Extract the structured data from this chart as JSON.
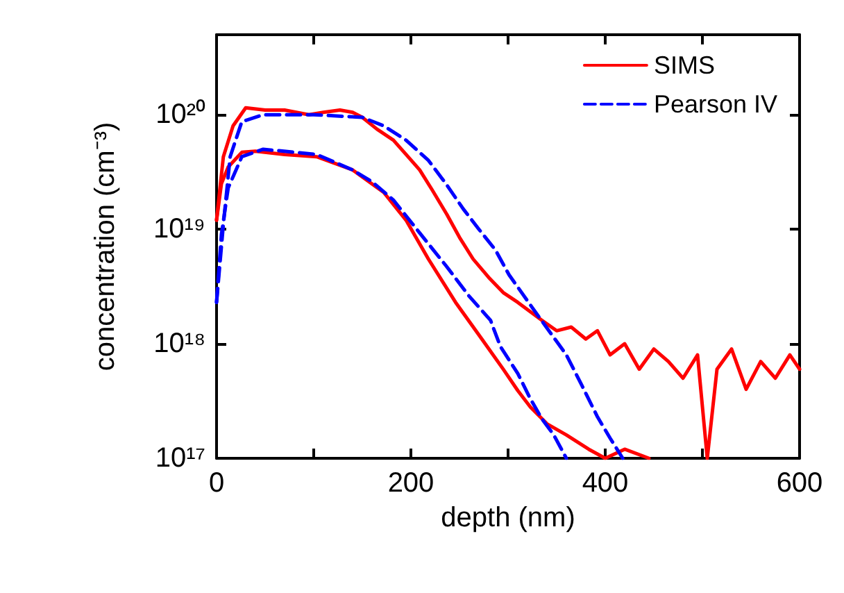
{
  "chart_data": {
    "type": "line",
    "xlabel": "depth (nm)",
    "ylabel": "concentration (cm⁻³)",
    "log": "y",
    "xlim": [
      0,
      600
    ],
    "xticks": [
      0,
      {
        "value": 100,
        "label": null
      },
      200,
      {
        "value": 300,
        "label": null
      },
      400,
      {
        "value": 500,
        "label": null
      },
      600
    ],
    "ylim": [
      1e+17,
      5e+20
    ],
    "yticks": [
      {
        "value": 1e+17,
        "label": "10¹⁷"
      },
      {
        "value": 1e+18,
        "label": "10¹⁸"
      },
      {
        "value": 1e+19,
        "label": "10¹⁹"
      },
      {
        "value": 1e+20,
        "label": "10²⁰"
      }
    ],
    "grid": false,
    "legend": "top right",
    "line_style": "solid",
    "marker": "none",
    "series": [
      {
        "name": "SIMS",
        "color": "#ff0000",
        "x": [
          0,
          7,
          17,
          30,
          50,
          70,
          95,
          110,
          127,
          140,
          150,
          165,
          182,
          195,
          209,
          222,
          237,
          250,
          264,
          280,
          295,
          310,
          323,
          335,
          350,
          365,
          380,
          392,
          405,
          420,
          435,
          450,
          465,
          480,
          495,
          505,
          515,
          530,
          545,
          560,
          575,
          590,
          600
        ],
        "values": [
          1.2e+19,
          4.3e+19,
          8e+19,
          1.15e+20,
          1.1e+20,
          1.1e+20,
          1e+20,
          1.05e+20,
          1.1e+20,
          1.05e+20,
          9.5e+19,
          7.5e+19,
          6e+19,
          4.5e+19,
          3.3e+19,
          2.2e+19,
          1.35e+19,
          8.5e+18,
          5.5e+18,
          3.8e+18,
          2.8e+18,
          2.3e+18,
          1.9e+18,
          1.6e+18,
          1.3e+18,
          1.4e+18,
          1.1e+18,
          1.3e+18,
          8e+17,
          1e+18,
          6e+17,
          9e+17,
          7e+17,
          5e+17,
          8e+17,
          1e+17,
          6e+17,
          9e+17,
          4e+17,
          7e+17,
          5e+17,
          8e+17,
          6e+17
        ]
      },
      {
        "color": "#ff0000",
        "x": [
          0,
          5,
          12,
          26,
          40,
          70,
          103,
          140,
          172,
          195,
          218,
          246,
          273,
          295,
          310,
          323,
          340,
          360,
          383,
          400,
          420,
          445
        ],
        "values": [
          1.2e+19,
          2.5e+19,
          3.5e+19,
          4.7e+19,
          4.8e+19,
          4.5e+19,
          4.3e+19,
          3.3e+19,
          2.1e+19,
          1.2e+19,
          5.5e+18,
          2.3e+18,
          1.1e+18,
          6e+17,
          3.9e+17,
          2.8e+17,
          2e+17,
          1.6e+17,
          1.2e+17,
          1e+17,
          1.2e+17,
          1e+17
        ]
      },
      {
        "name": "Pearson IV",
        "color": "#0000ff",
        "line_style": "dashed",
        "x": [
          0,
          7,
          14,
          26,
          48,
          100,
          150,
          172,
          195,
          218,
          236,
          254,
          270,
          287,
          301,
          330,
          360,
          375,
          392,
          405,
          418
        ],
        "values": [
          2.3e+18,
          1.1e+19,
          4.3e+19,
          8.7e+19,
          1e+20,
          1e+20,
          9.5e+19,
          8e+19,
          6e+19,
          4e+19,
          2.5e+19,
          1.5e+19,
          1e+19,
          6.6e+18,
          4e+18,
          1.8e+18,
          8e+17,
          4.5e+17,
          2.3e+17,
          1.5e+17,
          1e+17
        ]
      },
      {
        "color": "#0000ff",
        "line_style": "dashed",
        "x": [
          0,
          5,
          12,
          26,
          48,
          103,
          140,
          160,
          182,
          209,
          237,
          260,
          282,
          292,
          310,
          323,
          335,
          347,
          360
        ],
        "values": [
          2.3e+18,
          9e+18,
          2.3e+19,
          4.3e+19,
          5e+19,
          4.5e+19,
          3.3e+19,
          2.6e+19,
          1.8e+19,
          9.3e+18,
          4.7e+18,
          2.6e+18,
          1.6e+18,
          9.5e+17,
          5.5e+17,
          3.3e+17,
          2.2e+17,
          1.6e+17,
          1e+17
        ]
      }
    ]
  }
}
